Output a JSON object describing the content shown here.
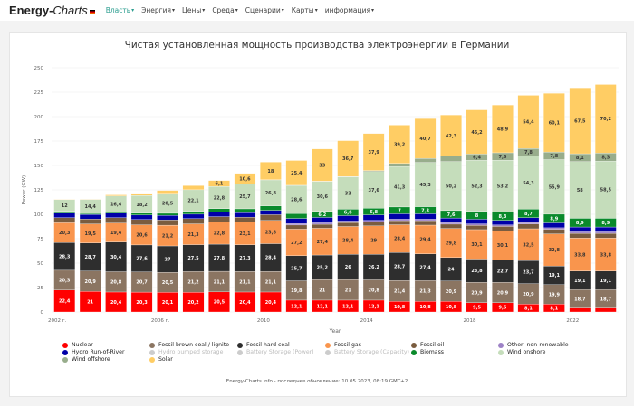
{
  "nav": {
    "logo_main": "Energy-",
    "logo_italic": "Charts",
    "items": [
      "Власть",
      "Энергия",
      "Цены",
      "Среда",
      "Сценарии",
      "Карты",
      "информация"
    ]
  },
  "footer": "Energy-Charts.info - последнее обновление: 10.05.2023, 08:19 GMT+2",
  "chart_data": {
    "type": "bar",
    "stacked": true,
    "title": "Чистая установленная мощность производства электроэнергии в Германии",
    "xlabel": "Year",
    "ylabel": "Power (GW)",
    "ylim": [
      0,
      250
    ],
    "yticks": [
      0,
      25,
      50,
      75,
      100,
      125,
      150,
      175,
      200,
      225,
      250
    ],
    "xtick_labels": [
      {
        "year": 2002,
        "label": "2002 г."
      },
      {
        "year": 2006,
        "label": "2006 г."
      },
      {
        "year": 2010,
        "label": "2010"
      },
      {
        "year": 2014,
        "label": "2014"
      },
      {
        "year": 2018,
        "label": "2018"
      },
      {
        "year": 2022,
        "label": "2022"
      }
    ],
    "grid": true,
    "legend_position": "bottom",
    "categories": [
      2002,
      2003,
      2004,
      2005,
      2006,
      2007,
      2008,
      2009,
      2010,
      2011,
      2012,
      2013,
      2014,
      2015,
      2016,
      2017,
      2018,
      2019,
      2020,
      2021,
      2022,
      2023
    ],
    "series": [
      {
        "name": "Nuclear",
        "color": "#ff0000",
        "values": [
          22.4,
          21.0,
          20.4,
          20.3,
          20.1,
          20.2,
          20.5,
          20.4,
          20.4,
          12.1,
          12.1,
          12.1,
          12.1,
          10.8,
          10.8,
          10.8,
          9.5,
          9.5,
          8.1,
          8.1,
          4.1,
          4.1
        ]
      },
      {
        "name": "Fossil brown coal / lignite",
        "color": "#8b7562",
        "values": [
          20.3,
          20.9,
          20.8,
          20.7,
          20.5,
          21.2,
          21.1,
          21.1,
          21.1,
          19.8,
          21.0,
          21.0,
          20.8,
          21.4,
          21.3,
          20.9,
          20.9,
          20.9,
          20.9,
          19.9,
          18.7,
          18.7
        ]
      },
      {
        "name": "Fossil hard coal",
        "color": "#2e2e2e",
        "values": [
          28.3,
          28.7,
          30.4,
          27.6,
          27.0,
          27.5,
          27.8,
          27.3,
          28.4,
          25.7,
          25.2,
          26.0,
          26.2,
          28.7,
          27.4,
          24.0,
          23.8,
          22.7,
          23.7,
          19.1,
          19.1,
          19.1
        ]
      },
      {
        "name": "Fossil gas",
        "color": "#f9954d",
        "values": [
          20.3,
          19.5,
          19.4,
          20.6,
          21.2,
          21.3,
          22.8,
          23.1,
          23.8,
          27.2,
          27.4,
          28.4,
          29.0,
          28.4,
          29.4,
          29.8,
          30.1,
          30.1,
          32.5,
          32.8,
          33.8,
          33.8
        ]
      },
      {
        "name": "Fossil oil",
        "color": "#7a5c3f",
        "values": [
          5.3,
          5.1,
          5.6,
          5.5,
          5.5,
          5.4,
          5.4,
          5.2,
          5.9,
          4.2,
          4.1,
          4.1,
          4.2,
          4.2,
          4.6,
          4.4,
          4.4,
          4.4,
          4.9,
          4.8,
          4.8,
          4.8
        ]
      },
      {
        "name": "Other, non-renewable",
        "color": "#9d82c6",
        "values": [
          null,
          null,
          null,
          null,
          null,
          null,
          null,
          null,
          null,
          1.5,
          1.5,
          1.5,
          1.5,
          1.5,
          1.5,
          1.5,
          1.5,
          1.5,
          1.5,
          1.5,
          1.5,
          1.5
        ]
      },
      {
        "name": "Hydro Run-of-River",
        "color": "#0000a8",
        "values": [
          4.5,
          4.5,
          4.5,
          4.5,
          4.5,
          4.5,
          4.5,
          4.5,
          4.5,
          5.3,
          5.5,
          5.5,
          5.6,
          5.5,
          5.5,
          4.8,
          4.8,
          4.8,
          5.0,
          5.0,
          5.0,
          5.0
        ]
      },
      {
        "name": "Biomass",
        "color": "#0a8a2b",
        "values": [
          1.9,
          1.1,
          1.3,
          1.9,
          2.2,
          2.9,
          3.6,
          4.0,
          4.4,
          5.0,
          6.2,
          6.6,
          6.8,
          7.0,
          7.3,
          7.6,
          8.0,
          8.3,
          8.7,
          8.9,
          8.9,
          8.9
        ]
      },
      {
        "name": "Wind onshore",
        "color": "#c5ddbb",
        "values": [
          12.0,
          14.4,
          16.4,
          18.2,
          20.5,
          22.1,
          22.8,
          25.7,
          26.8,
          28.6,
          30.6,
          33.0,
          37.6,
          41.3,
          45.3,
          50.2,
          52.3,
          53.2,
          54.3,
          55.9,
          58.0,
          58.5
        ]
      },
      {
        "name": "Wind offshore",
        "color": "#98ad8c",
        "values": [
          null,
          null,
          null,
          null,
          null,
          null,
          null,
          null,
          0.1,
          0.3,
          0.3,
          0.5,
          1.0,
          3.3,
          4.2,
          5.4,
          6.4,
          7.6,
          7.8,
          7.8,
          8.1,
          8.3
        ]
      },
      {
        "name": "Solar",
        "color": "#ffcd64",
        "values": [
          0.3,
          0.4,
          1.1,
          2.1,
          2.9,
          4.2,
          6.1,
          10.6,
          18.0,
          25.4,
          33.0,
          36.7,
          37.9,
          39.2,
          40.7,
          42.3,
          45.2,
          48.9,
          54.4,
          60.1,
          67.5,
          70.2
        ]
      }
    ],
    "legend": [
      {
        "name": "Nuclear",
        "color": "#ff0000",
        "enabled": true
      },
      {
        "name": "Hydro Run-of-River",
        "color": "#0000a8",
        "enabled": true
      },
      {
        "name": "Wind offshore",
        "color": "#98ad8c",
        "enabled": true
      },
      {
        "name": "Fossil brown coal / lignite",
        "color": "#8b7562",
        "enabled": true
      },
      {
        "name": "Hydro pumped storage",
        "color": "#cccccc",
        "enabled": false
      },
      {
        "name": "Solar",
        "color": "#ffcd64",
        "enabled": true
      },
      {
        "name": "Fossil hard coal",
        "color": "#2e2e2e",
        "enabled": true
      },
      {
        "name": "Battery Storage (Power)",
        "color": "#cccccc",
        "enabled": false
      },
      {
        "name": "Fossil gas",
        "color": "#f9954d",
        "enabled": true
      },
      {
        "name": "Battery Storage (Capacity)",
        "color": "#cccccc",
        "enabled": false
      },
      {
        "name": "Fossil oil",
        "color": "#7a5c3f",
        "enabled": true
      },
      {
        "name": "Biomass",
        "color": "#0a8a2b",
        "enabled": true
      },
      {
        "name": "Other, non-renewable",
        "color": "#9d82c6",
        "enabled": true
      },
      {
        "name": "Wind onshore",
        "color": "#c5ddbb",
        "enabled": true
      }
    ]
  }
}
